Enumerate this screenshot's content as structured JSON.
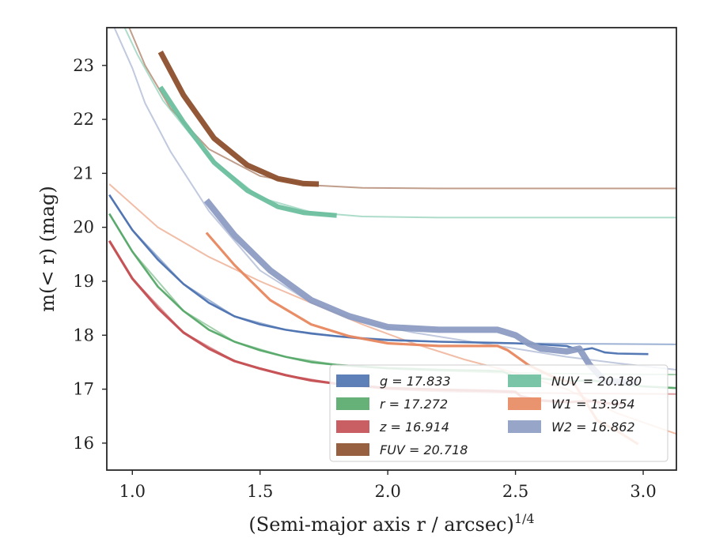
{
  "chart_data": {
    "type": "line",
    "title": "",
    "xlabel": "(Semi-major axis r / arcsec)",
    "xlabel_sup": "1/4",
    "ylabel": "m(< r) (mag)",
    "xlim": [
      0.9,
      3.13
    ],
    "ylim": [
      23.7,
      15.5
    ],
    "y_inverted": true,
    "xticks": [
      1.0,
      1.5,
      2.0,
      2.5,
      3.0
    ],
    "xtick_labels": [
      "1.0",
      "1.5",
      "2.0",
      "2.5",
      "3.0"
    ],
    "yticks": [
      16,
      17,
      18,
      19,
      20,
      21,
      22,
      23
    ],
    "ytick_labels": [
      "16",
      "17",
      "18",
      "19",
      "20",
      "21",
      "22",
      "23"
    ],
    "grid": false,
    "legend_placement": "lower-right",
    "series": [
      {
        "name": "g = 17.833",
        "band": "g",
        "color": "#4c72b0",
        "observed": [
          [
            0.91,
            20.6
          ],
          [
            1.0,
            19.95
          ],
          [
            1.1,
            19.4
          ],
          [
            1.2,
            18.95
          ],
          [
            1.3,
            18.6
          ],
          [
            1.4,
            18.35
          ],
          [
            1.5,
            18.2
          ],
          [
            1.6,
            18.1
          ],
          [
            1.7,
            18.03
          ],
          [
            1.8,
            17.98
          ],
          [
            1.9,
            17.94
          ],
          [
            2.0,
            17.91
          ],
          [
            2.2,
            17.88
          ],
          [
            2.4,
            17.86
          ],
          [
            2.5,
            17.85
          ],
          [
            2.6,
            17.83
          ],
          [
            2.7,
            17.8
          ],
          [
            2.75,
            17.72
          ],
          [
            2.8,
            17.76
          ],
          [
            2.85,
            17.68
          ],
          [
            2.9,
            17.66
          ],
          [
            3.02,
            17.65
          ]
        ],
        "model": [
          [
            0.91,
            20.6
          ],
          [
            1.0,
            19.95
          ],
          [
            1.2,
            18.95
          ],
          [
            1.4,
            18.35
          ],
          [
            1.6,
            18.1
          ],
          [
            1.8,
            17.98
          ],
          [
            2.0,
            17.92
          ],
          [
            2.2,
            17.88
          ],
          [
            2.5,
            17.85
          ],
          [
            2.8,
            17.84
          ],
          [
            3.13,
            17.83
          ]
        ]
      },
      {
        "name": "r = 17.272",
        "band": "r",
        "color": "#55a868",
        "observed": [
          [
            0.91,
            20.25
          ],
          [
            1.0,
            19.55
          ],
          [
            1.1,
            18.9
          ],
          [
            1.2,
            18.45
          ],
          [
            1.3,
            18.1
          ],
          [
            1.4,
            17.88
          ],
          [
            1.5,
            17.72
          ],
          [
            1.6,
            17.6
          ],
          [
            1.7,
            17.5
          ],
          [
            1.8,
            17.45
          ],
          [
            1.9,
            17.42
          ],
          [
            2.0,
            17.39
          ],
          [
            2.2,
            17.36
          ],
          [
            2.4,
            17.34
          ],
          [
            2.45,
            17.33
          ],
          [
            2.5,
            17.22
          ],
          [
            2.6,
            17.2
          ],
          [
            2.7,
            17.15
          ],
          [
            2.8,
            17.16
          ],
          [
            2.9,
            17.1
          ],
          [
            3.0,
            17.05
          ],
          [
            3.13,
            17.02
          ]
        ],
        "model": [
          [
            0.91,
            20.25
          ],
          [
            1.0,
            19.55
          ],
          [
            1.2,
            18.45
          ],
          [
            1.4,
            17.88
          ],
          [
            1.6,
            17.6
          ],
          [
            1.8,
            17.45
          ],
          [
            2.0,
            17.38
          ],
          [
            2.2,
            17.34
          ],
          [
            2.5,
            17.3
          ],
          [
            2.8,
            17.28
          ],
          [
            3.13,
            17.27
          ]
        ]
      },
      {
        "name": "z = 16.914",
        "band": "z",
        "color": "#c44e52",
        "observed": [
          [
            0.91,
            19.75
          ],
          [
            1.0,
            19.05
          ],
          [
            1.1,
            18.5
          ],
          [
            1.2,
            18.05
          ],
          [
            1.3,
            17.75
          ],
          [
            1.4,
            17.52
          ],
          [
            1.5,
            17.38
          ],
          [
            1.6,
            17.26
          ],
          [
            1.7,
            17.16
          ],
          [
            1.8,
            17.1
          ],
          [
            1.9,
            17.06
          ],
          [
            2.0,
            17.02
          ],
          [
            2.2,
            16.99
          ],
          [
            2.4,
            16.97
          ],
          [
            2.5,
            16.95
          ],
          [
            2.52,
            16.87
          ],
          [
            2.6,
            16.79
          ],
          [
            2.7,
            16.76
          ],
          [
            2.8,
            16.78
          ],
          [
            2.85,
            16.74
          ],
          [
            2.92,
            16.72
          ]
        ],
        "model": [
          [
            0.91,
            19.75
          ],
          [
            1.0,
            19.05
          ],
          [
            1.2,
            18.05
          ],
          [
            1.4,
            17.52
          ],
          [
            1.6,
            17.26
          ],
          [
            1.8,
            17.1
          ],
          [
            2.0,
            17.0
          ],
          [
            2.2,
            16.96
          ],
          [
            2.5,
            16.93
          ],
          [
            2.8,
            16.92
          ],
          [
            3.13,
            16.91
          ]
        ]
      },
      {
        "name": "FUV = 20.718",
        "band": "FUV",
        "color": "#8c4f2c",
        "observed": [
          [
            1.11,
            23.25
          ],
          [
            1.2,
            22.45
          ],
          [
            1.32,
            21.65
          ],
          [
            1.45,
            21.15
          ],
          [
            1.57,
            20.9
          ],
          [
            1.67,
            20.81
          ],
          [
            1.73,
            20.8
          ]
        ],
        "model": [
          [
            0.97,
            23.9
          ],
          [
            1.05,
            23.0
          ],
          [
            1.15,
            22.2
          ],
          [
            1.3,
            21.45
          ],
          [
            1.5,
            20.95
          ],
          [
            1.7,
            20.78
          ],
          [
            1.9,
            20.73
          ],
          [
            2.2,
            20.72
          ],
          [
            3.13,
            20.72
          ]
        ]
      },
      {
        "name": "NUV = 20.180",
        "band": "NUV",
        "color": "#6bbf9f",
        "observed": [
          [
            1.11,
            22.6
          ],
          [
            1.2,
            21.95
          ],
          [
            1.32,
            21.2
          ],
          [
            1.45,
            20.68
          ],
          [
            1.57,
            20.38
          ],
          [
            1.67,
            20.27
          ],
          [
            1.8,
            20.22
          ]
        ],
        "model": [
          [
            0.95,
            23.9
          ],
          [
            1.02,
            23.2
          ],
          [
            1.12,
            22.35
          ],
          [
            1.3,
            21.3
          ],
          [
            1.5,
            20.55
          ],
          [
            1.7,
            20.28
          ],
          [
            1.9,
            20.2
          ],
          [
            2.2,
            20.18
          ],
          [
            3.13,
            20.18
          ]
        ]
      },
      {
        "name": "W1 = 13.954",
        "band": "W1",
        "color": "#e8875f",
        "observed": [
          [
            1.29,
            19.9
          ],
          [
            1.4,
            19.3
          ],
          [
            1.54,
            18.65
          ],
          [
            1.7,
            18.2
          ],
          [
            1.85,
            17.98
          ],
          [
            2.0,
            17.85
          ],
          [
            2.2,
            17.8
          ],
          [
            2.43,
            17.8
          ],
          [
            2.47,
            17.72
          ],
          [
            2.55,
            17.45
          ],
          [
            2.65,
            17.22
          ],
          [
            2.73,
            17.1
          ],
          [
            2.77,
            16.8
          ],
          [
            2.82,
            16.42
          ],
          [
            2.9,
            16.22
          ],
          [
            2.98,
            15.98
          ]
        ],
        "model": [
          [
            0.91,
            20.8
          ],
          [
            1.1,
            20.0
          ],
          [
            1.3,
            19.45
          ],
          [
            1.5,
            19.0
          ],
          [
            1.7,
            18.6
          ],
          [
            1.9,
            18.2
          ],
          [
            2.1,
            17.85
          ],
          [
            2.3,
            17.55
          ],
          [
            2.5,
            17.3
          ],
          [
            2.7,
            17.0
          ],
          [
            2.9,
            16.55
          ],
          [
            3.13,
            16.17
          ]
        ]
      },
      {
        "name": "W2 = 16.862",
        "band": "W2",
        "color": "#8c9cc2",
        "observed": [
          [
            1.29,
            20.5
          ],
          [
            1.4,
            19.85
          ],
          [
            1.54,
            19.2
          ],
          [
            1.7,
            18.65
          ],
          [
            1.85,
            18.35
          ],
          [
            2.0,
            18.15
          ],
          [
            2.2,
            18.1
          ],
          [
            2.43,
            18.1
          ],
          [
            2.5,
            18.0
          ],
          [
            2.55,
            17.85
          ],
          [
            2.6,
            17.75
          ],
          [
            2.7,
            17.7
          ],
          [
            2.75,
            17.75
          ],
          [
            2.79,
            17.45
          ],
          [
            2.85,
            17.15
          ],
          [
            2.98,
            17.12
          ]
        ],
        "model": [
          [
            0.92,
            23.8
          ],
          [
            1.0,
            22.95
          ],
          [
            1.05,
            22.3
          ],
          [
            1.15,
            21.4
          ],
          [
            1.3,
            20.3
          ],
          [
            1.5,
            19.2
          ],
          [
            1.7,
            18.6
          ],
          [
            1.9,
            18.25
          ],
          [
            2.1,
            18.05
          ],
          [
            2.3,
            17.9
          ],
          [
            2.5,
            17.75
          ],
          [
            2.7,
            17.6
          ],
          [
            2.9,
            17.48
          ],
          [
            3.13,
            17.36
          ]
        ]
      }
    ]
  }
}
